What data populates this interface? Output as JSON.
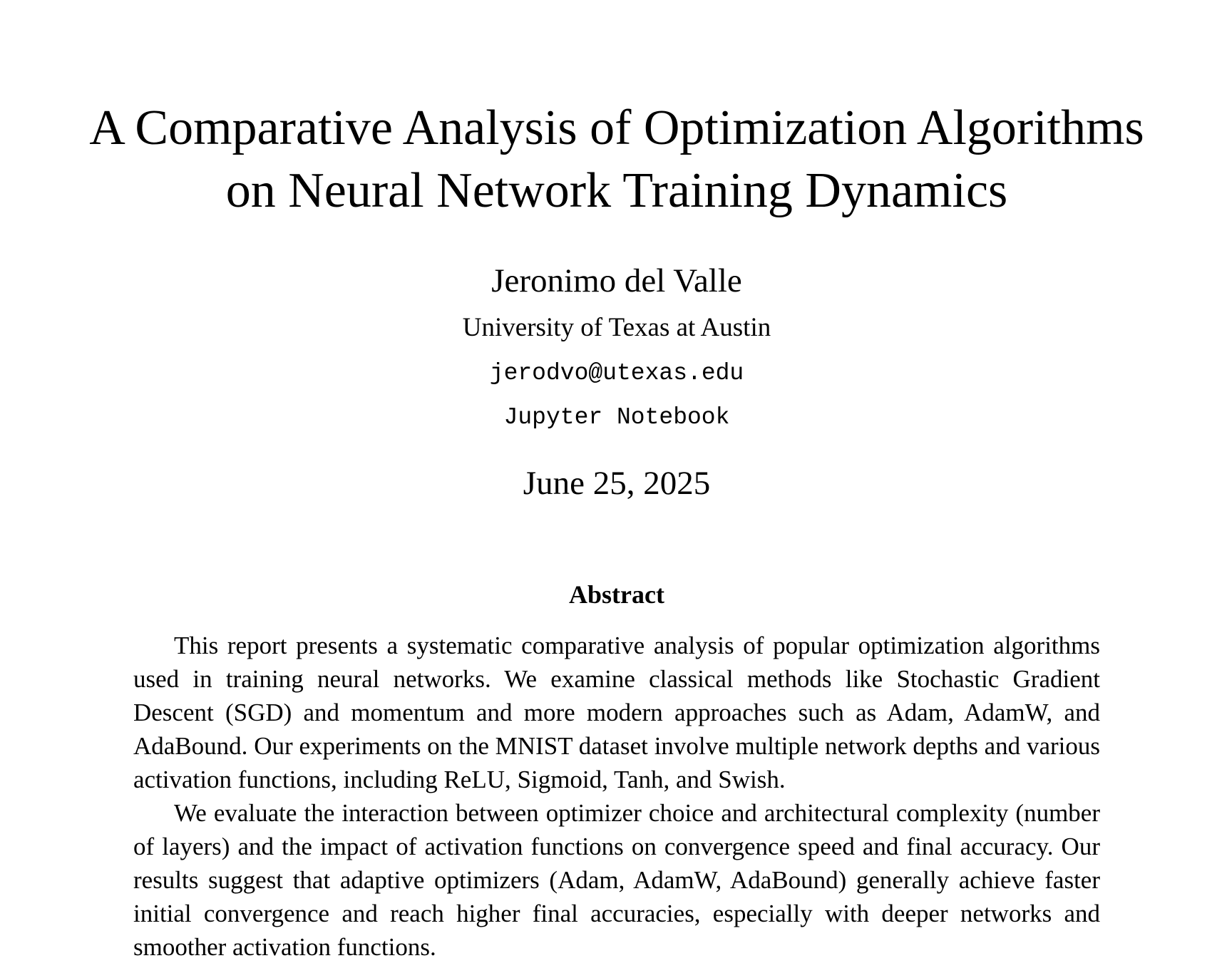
{
  "paper": {
    "title_line1": "A Comparative Analysis of Optimization Algorithms",
    "title_line2": "on Neural Network Training Dynamics",
    "author": "Jeronimo del Valle",
    "affiliation": "University of Texas at Austin",
    "email": "jerodvo@utexas.edu",
    "venue": "Jupyter Notebook",
    "date": "June 25, 2025"
  },
  "abstract": {
    "heading": "Abstract",
    "paragraph1": "This report presents a systematic comparative analysis of popular optimization algorithms used in training neural networks.  We examine classical methods like Stochastic Gradient Descent (SGD) and momentum and more modern approaches such as Adam, AdamW, and AdaBound. Our experiments on the MNIST dataset involve multiple network depths and various activation functions, including ReLU, Sigmoid, Tanh, and Swish.",
    "paragraph2": "We evaluate the interaction between optimizer choice and architectural com­plexity (number of layers) and the impact of activation functions on convergence speed and final accuracy.  Our results suggest that adaptive optimizers (Adam, AdamW, AdaBound) generally achieve faster initial convergence and reach higher final accuracies, especially with deeper networks and smoother activation functions."
  }
}
